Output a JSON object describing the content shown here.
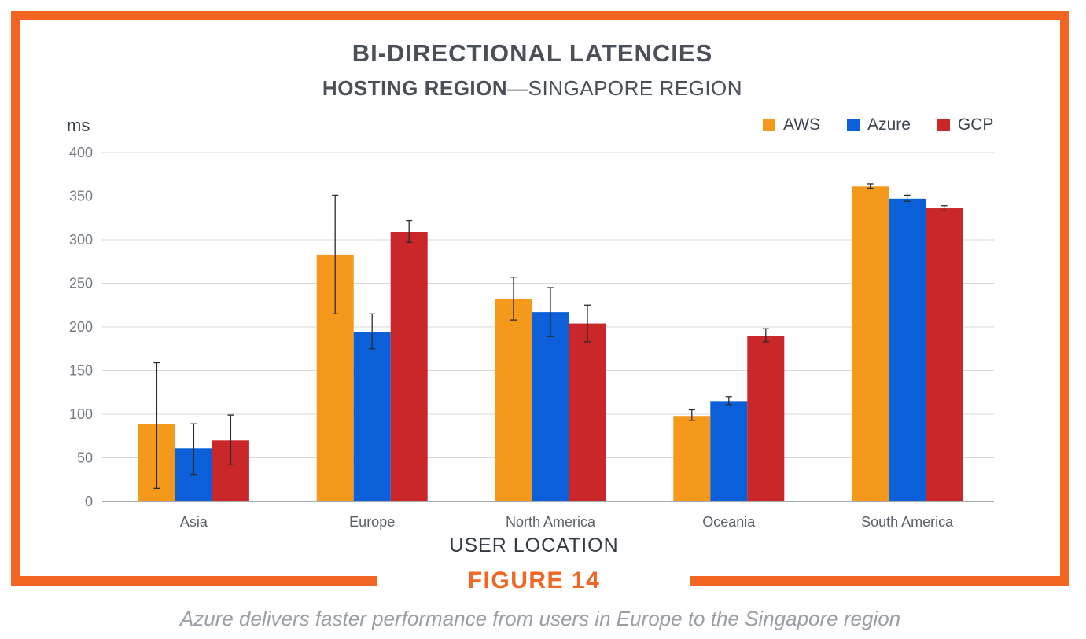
{
  "title": "BI-DIRECTIONAL LATENCIES",
  "subtitle_bold": "HOSTING REGION",
  "subtitle_rest": "—SINGAPORE REGION",
  "figure_label": "FIGURE 14",
  "caption": "Azure delivers faster performance from users in Europe to the Singapore region",
  "colors": {
    "frame": "#f26522",
    "AWS": "#f5991c",
    "Azure": "#0b5fd8",
    "GCP": "#c9272a"
  },
  "chart_data": {
    "type": "bar",
    "ylabel": "ms",
    "xlabel": "USER LOCATION",
    "ylim": [
      0,
      400
    ],
    "yticks": [
      "0",
      "50",
      "100",
      "150",
      "200",
      "250",
      "300",
      "350",
      "400"
    ],
    "grid": true,
    "legend_position": "top-right",
    "categories": [
      "Asia",
      "Europe",
      "North America",
      "Oceania",
      "South America"
    ],
    "series": [
      {
        "name": "AWS",
        "values": [
          89,
          283,
          232,
          98,
          361
        ],
        "error_low": [
          15,
          215,
          208,
          93,
          359
        ],
        "error_high": [
          159,
          351,
          257,
          105,
          364
        ]
      },
      {
        "name": "Azure",
        "values": [
          61,
          194,
          217,
          115,
          347
        ],
        "error_low": [
          31,
          175,
          189,
          111,
          344
        ],
        "error_high": [
          89,
          215,
          245,
          120,
          351
        ]
      },
      {
        "name": "GCP",
        "values": [
          70,
          309,
          204,
          190,
          336
        ],
        "error_low": [
          42,
          297,
          183,
          183,
          333
        ],
        "error_high": [
          99,
          322,
          225,
          198,
          339
        ]
      }
    ]
  }
}
